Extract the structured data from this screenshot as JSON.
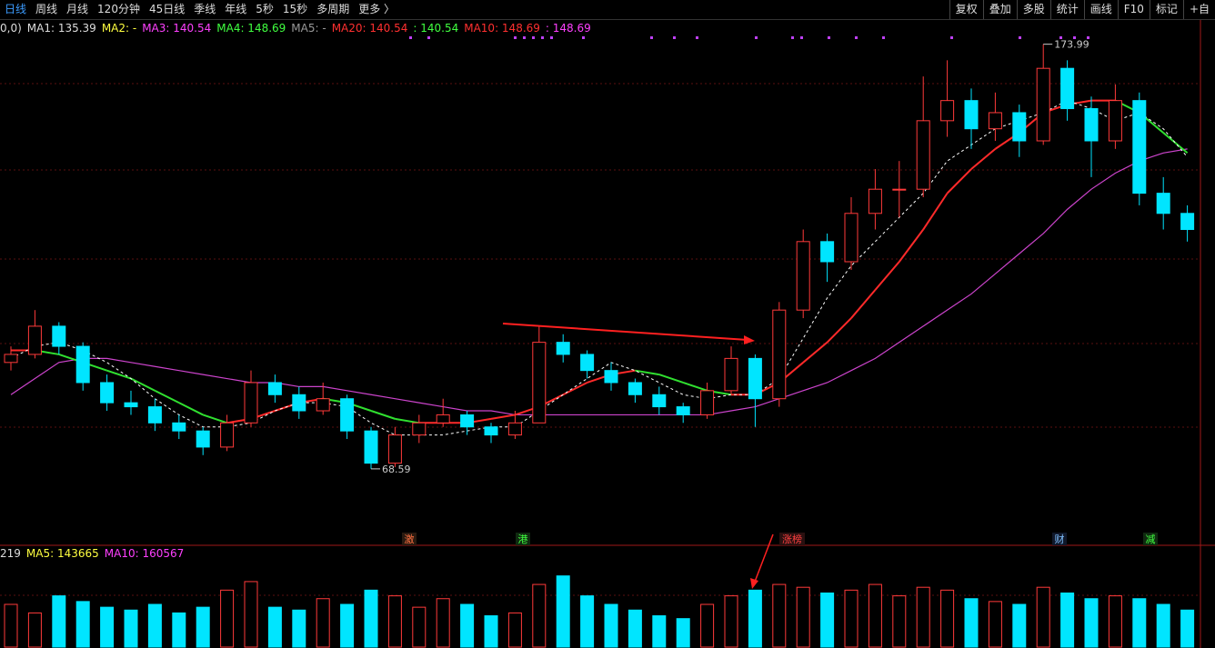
{
  "toolbar": {
    "left": [
      "日线",
      "周线",
      "月线",
      "120分钟",
      "45日线",
      "季线",
      "年线",
      "5秒",
      "15秒",
      "多周期",
      "更多 〉"
    ],
    "right": [
      "复权",
      "叠加",
      "多股",
      "统计",
      "画线",
      "F10",
      "标记",
      "+自"
    ]
  },
  "events": [
    "激",
    "港",
    "涨榜",
    "财",
    "减"
  ],
  "chart_data": {
    "type": "candlestick",
    "legend": [
      {
        "text": "0,0)",
        "color": "#dddddd"
      },
      {
        "text": "MA1: 135.39",
        "color": "#dddddd"
      },
      {
        "text": "MA2: -",
        "color": "#ffff40"
      },
      {
        "text": "MA3: 140.54",
        "color": "#ff40ff"
      },
      {
        "text": "MA4: 148.69",
        "color": "#40ff40"
      },
      {
        "text": "MA5: -",
        "color": "#999999"
      },
      {
        "text": "MA20: 140.54",
        "color": "#ff3030"
      },
      {
        "text": ": 140.54",
        "color": "#40ff40"
      },
      {
        "text": "MA10: 148.69",
        "color": "#ff3030"
      },
      {
        "text": ": 148.69",
        "color": "#ff40ff"
      }
    ],
    "up_color": "#ff3a3a",
    "down_color": "#00e5ff",
    "ylim": [
      53,
      180
    ],
    "open": [
      95,
      97,
      104,
      99,
      90,
      85,
      84,
      80,
      78,
      74,
      80,
      90,
      87,
      83,
      86,
      78,
      70,
      77,
      80,
      82,
      79,
      77,
      80,
      100,
      97,
      93,
      90,
      87,
      84,
      82,
      88,
      96,
      86,
      108,
      125,
      120,
      132,
      138,
      138,
      155,
      160,
      153,
      157,
      150,
      168,
      158,
      150,
      160,
      137,
      132
    ],
    "high": [
      99,
      108,
      105,
      100,
      92,
      88,
      86,
      82,
      79,
      82,
      93,
      92,
      89,
      90,
      87,
      79,
      79,
      82,
      86,
      83,
      80,
      83,
      104,
      102,
      98,
      95,
      91,
      89,
      85,
      90,
      99,
      97,
      110,
      128,
      127,
      136,
      143,
      145,
      166,
      170,
      163,
      162,
      159,
      173.99,
      170,
      161,
      164,
      162,
      141,
      134
    ],
    "low": [
      93,
      96,
      97,
      88,
      83,
      82,
      78,
      76,
      72,
      73,
      79,
      85,
      81,
      82,
      76,
      68.59,
      69,
      75,
      79,
      77,
      75,
      76,
      80,
      95,
      91,
      88,
      85,
      82,
      80,
      81,
      87,
      79,
      84,
      106,
      115,
      118,
      128,
      131,
      136,
      151,
      148,
      150,
      146,
      149,
      155,
      141,
      148,
      134,
      128,
      125
    ],
    "close": [
      97,
      104,
      99,
      90,
      85,
      84,
      80,
      78,
      74,
      80,
      90,
      87,
      83,
      86,
      78,
      70,
      77,
      80,
      82,
      79,
      77,
      80,
      100,
      97,
      93,
      90,
      87,
      84,
      82,
      88,
      96,
      86,
      108,
      125,
      120,
      132,
      138,
      138,
      155,
      160,
      153,
      157,
      150,
      168,
      158,
      150,
      160,
      137,
      132,
      128
    ],
    "lines": [
      {
        "color": "#cc44cc",
        "dash": false,
        "values": [
          87,
          91,
          95,
          96,
          96,
          95,
          94,
          93,
          92,
          91,
          90,
          90,
          89,
          89,
          88,
          87,
          86,
          85,
          84,
          83,
          83,
          82,
          82,
          82,
          82,
          82,
          82,
          82,
          82,
          82,
          83,
          84,
          86,
          88,
          90,
          93,
          96,
          100,
          104,
          108,
          112,
          117,
          122,
          127,
          133,
          138,
          142,
          145,
          147,
          148
        ]
      },
      {
        "color": "#ff2a2a",
        "color_down": "#30e030",
        "dash": false,
        "values": [
          98,
          98,
          97,
          95,
          93,
          91,
          88,
          85,
          82,
          80,
          81,
          83,
          85,
          86,
          85,
          83,
          81,
          80,
          80,
          80,
          81,
          82,
          84,
          87,
          90,
          92,
          93,
          92,
          90,
          88,
          87,
          87,
          90,
          95,
          100,
          106,
          113,
          120,
          128,
          137,
          143,
          148,
          152,
          157,
          159,
          160,
          160,
          157,
          152,
          147
        ]
      },
      {
        "color": "#ffffff",
        "dash": true,
        "values": [
          96,
          99,
          100,
          98,
          95,
          91,
          86,
          82,
          79,
          79,
          80,
          83,
          85,
          85,
          84,
          80,
          77,
          77,
          77,
          78,
          79,
          79,
          83,
          87,
          91,
          95,
          93,
          90,
          87,
          86,
          87,
          87,
          91,
          101,
          111,
          119,
          125,
          131,
          137,
          145,
          149,
          153,
          155,
          157,
          160,
          158,
          155,
          157,
          153,
          146
        ]
      }
    ],
    "volume": {
      "legend": [
        {
          "text": "219",
          "color": "#dddddd"
        },
        {
          "text": "MA5: 143665",
          "color": "#ffff40"
        },
        {
          "text": "MA10: 160567",
          "color": "#ff40ff"
        }
      ],
      "ylim": [
        0,
        300000
      ],
      "values": [
        150000,
        120000,
        180000,
        160000,
        140000,
        130000,
        150000,
        120000,
        140000,
        200000,
        230000,
        140000,
        130000,
        170000,
        150000,
        200000,
        180000,
        140000,
        170000,
        150000,
        110000,
        120000,
        220000,
        250000,
        180000,
        150000,
        130000,
        110000,
        100000,
        150000,
        180000,
        200000,
        220000,
        210000,
        190000,
        200000,
        220000,
        180000,
        210000,
        200000,
        170000,
        160000,
        150000,
        210000,
        190000,
        170000,
        180000,
        170000,
        150000,
        130000
      ]
    }
  }
}
